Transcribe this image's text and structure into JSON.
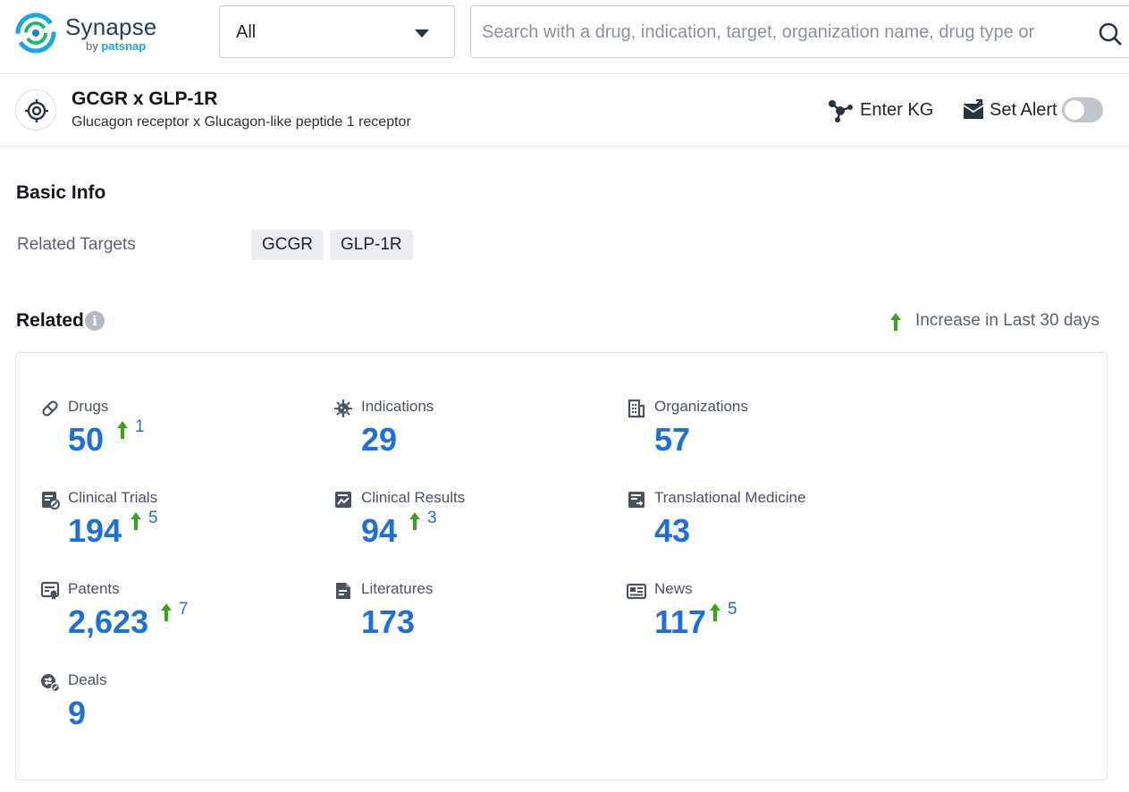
{
  "app": {
    "brand": "Synapse",
    "by_prefix": "by",
    "by_name": "patsnap",
    "brand_color": "#2c3e50",
    "accent_color": "#1aa6e0"
  },
  "search": {
    "scope_value": "All",
    "placeholder": "Search with a drug, indication, target, organization name, drug type or",
    "value": ""
  },
  "entity": {
    "icon": "target-icon",
    "title": "GCGR x GLP-1R",
    "subtitle": "Glucagon receptor x Glucagon-like peptide 1 receptor",
    "enter_kg_label": "Enter KG",
    "set_alert_label": "Set Alert",
    "alert_enabled": false
  },
  "basic_info": {
    "title": "Basic Info",
    "related_targets_label": "Related Targets",
    "related_targets": [
      "GCGR",
      "GLP-1R"
    ]
  },
  "related": {
    "title": "Related",
    "info_glyph": "i",
    "legend_label": "Increase in Last 30 days",
    "value_color": "#1e6fd9",
    "increase_color": "#3aa31c",
    "stats": [
      {
        "key": "drugs",
        "label": "Drugs",
        "value": "50",
        "increase": "1",
        "icon": "pill-icon"
      },
      {
        "key": "indications",
        "label": "Indications",
        "value": "29",
        "increase": null,
        "icon": "virus-icon"
      },
      {
        "key": "organizations",
        "label": "Organizations",
        "value": "57",
        "increase": null,
        "icon": "building-icon"
      },
      {
        "key": "clinical-trials",
        "label": "Clinical Trials",
        "value": "194",
        "increase": "5",
        "icon": "clinical-trial-icon"
      },
      {
        "key": "clinical-results",
        "label": "Clinical Results",
        "value": "94",
        "increase": "3",
        "icon": "chart-doc-icon"
      },
      {
        "key": "translational-medicine",
        "label": "Translational Medicine",
        "value": "43",
        "increase": null,
        "icon": "translation-doc-icon"
      },
      {
        "key": "patents",
        "label": "Patents",
        "value": "2,623",
        "increase": "7",
        "icon": "patent-icon"
      },
      {
        "key": "literatures",
        "label": "Literatures",
        "value": "173",
        "increase": null,
        "icon": "document-icon"
      },
      {
        "key": "news",
        "label": "News",
        "value": "117",
        "increase": "5",
        "icon": "news-icon"
      },
      {
        "key": "deals",
        "label": "Deals",
        "value": "9",
        "increase": null,
        "icon": "deal-icon"
      }
    ]
  }
}
